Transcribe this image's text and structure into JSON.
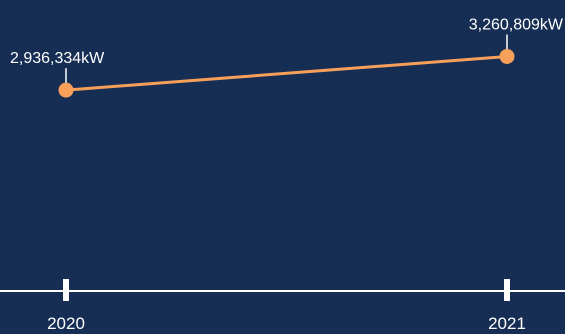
{
  "colors": {
    "background": "#162d54",
    "series_line": "#f7a05a",
    "axis": "#ffffff",
    "text": "#ffffff"
  },
  "chart_data": {
    "type": "line",
    "title": "",
    "xlabel": "",
    "ylabel": "",
    "categories": [
      "2020",
      "2021"
    ],
    "series": [
      {
        "values": [
          2936334,
          3260809
        ],
        "labels": [
          "2,936,334kW",
          "3,260,809kW"
        ]
      }
    ],
    "grid": false,
    "legend": "none"
  }
}
